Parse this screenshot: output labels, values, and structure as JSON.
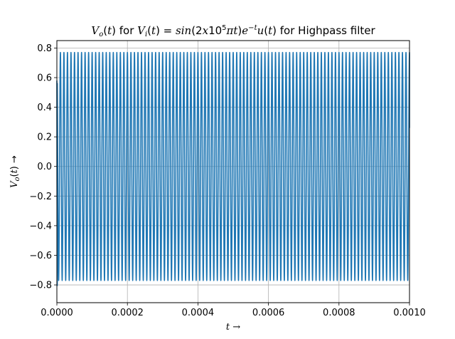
{
  "chart_data": {
    "type": "line",
    "title": "V_o(t) for V_i(t) = sin(2x10^5 πt)e^{-t}u(t) for Highpass filter",
    "xlabel": "t →",
    "ylabel": "V_o(t) →",
    "xlim": [
      0.0,
      0.001
    ],
    "ylim": [
      -0.92,
      0.85
    ],
    "grid": true,
    "xticks": [
      0.0,
      0.0002,
      0.0004,
      0.0006,
      0.0008,
      0.001
    ],
    "xtick_labels": [
      "0.0000",
      "0.0002",
      "0.0004",
      "0.0006",
      "0.0008",
      "0.0010"
    ],
    "yticks": [
      -0.8,
      -0.6,
      -0.4,
      -0.2,
      0.0,
      0.2,
      0.4,
      0.6,
      0.8
    ],
    "ytick_labels": [
      "−0.8",
      "−0.6",
      "−0.4",
      "−0.2",
      "0.0",
      "0.2",
      "0.4",
      "0.6",
      "0.8"
    ],
    "series": [
      {
        "color": "#1f77b4",
        "signal": {
          "frequency_hz": 100000,
          "steady_amplitude": 0.77,
          "initial_undershoot": -0.83,
          "end_value": 0.26
        }
      }
    ]
  }
}
